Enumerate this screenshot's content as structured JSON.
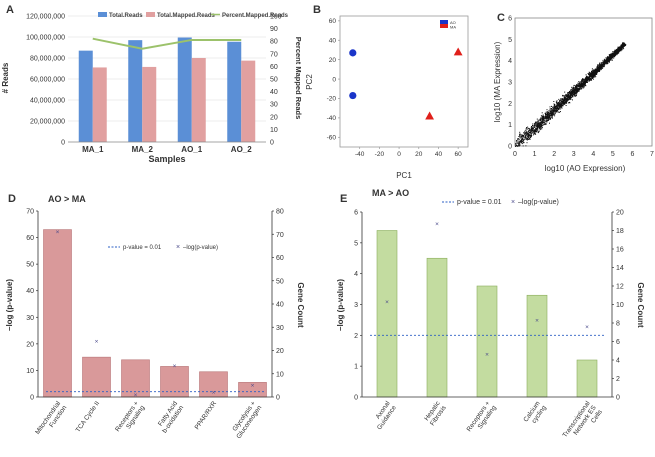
{
  "panel_labels": {
    "a": "A",
    "b": "B",
    "c": "C",
    "d": "D",
    "e": "E"
  },
  "colors": {
    "blue": "#5b8fd6",
    "pink": "#e1a0a0",
    "green_line": "#9cc26b",
    "bar_green": "#c3dca0",
    "bar_green_stroke": "#8aae5c",
    "bar_red": "#d9999a",
    "bar_red_stroke": "#b77476",
    "dot_blue": "#1a35c9",
    "tri_red": "#e0201b",
    "threshold": "#2b5fc4"
  },
  "chart_data": [
    {
      "id": "A",
      "type": "bar",
      "categories": [
        "MA_1",
        "MA_2",
        "AO_1",
        "AO_2"
      ],
      "series": [
        {
          "name": "Total.Reads",
          "values": [
            87000000,
            97000000,
            99500000,
            95500000
          ]
        },
        {
          "name": "Total.Mapped.Reads",
          "values": [
            71000000,
            71500000,
            80000000,
            77500000
          ]
        }
      ],
      "line_series": {
        "name": "Percent.Mapped.Reads",
        "values": [
          82,
          74,
          81,
          81
        ]
      },
      "xlabel": "Samples",
      "ylabel": "# Reads",
      "ylabel2": "Percent Mapped Reads",
      "ylim": [
        0,
        120000000
      ],
      "ylim2": [
        0,
        100
      ],
      "yticks": [
        "0",
        "20,000,000",
        "40,000,000",
        "60,000,000",
        "80,000,000",
        "100,000,000",
        "120,000,000"
      ],
      "yticks2": [
        "0",
        "10",
        "20",
        "30",
        "40",
        "50",
        "60",
        "70",
        "80",
        "90",
        "100"
      ]
    },
    {
      "id": "B",
      "type": "scatter",
      "series": [
        {
          "name": "AO",
          "x": [
            -47,
            -47
          ],
          "y": [
            27,
            -17
          ]
        },
        {
          "name": "MA",
          "x": [
            31,
            60
          ],
          "y": [
            -38,
            28
          ]
        }
      ],
      "xlabel": "PC1",
      "ylabel": "PC2",
      "xlim": [
        -60,
        70
      ],
      "ylim": [
        -70,
        65
      ],
      "xticks": [
        "-40",
        "-20",
        "0",
        "20",
        "40",
        "60"
      ],
      "yticks": [
        "-60",
        "-40",
        "-20",
        "0",
        "20",
        "40",
        "60"
      ],
      "legend": [
        "AO",
        "MA"
      ]
    },
    {
      "id": "C",
      "type": "scatter",
      "xlabel": "log10 (AO Expression)",
      "ylabel": "log10 (MA Expression)",
      "xlim": [
        0,
        7
      ],
      "ylim": [
        0,
        6
      ],
      "xticks": [
        "0",
        "1",
        "2",
        "3",
        "4",
        "5",
        "6",
        "7"
      ],
      "yticks": [
        "0",
        "1",
        "2",
        "3",
        "4",
        "5",
        "6"
      ]
    },
    {
      "id": "D",
      "type": "bar",
      "title": "AO > MA",
      "categories": [
        "Mitochondrial Function",
        "TCA Cycle II",
        "Receptors + Signaling",
        "Fatty Acid b-oxidation",
        "PPAR/RXR",
        "Glycolysis + Gluconeogen"
      ],
      "values": [
        63,
        15,
        14,
        11.5,
        9.5,
        5.5
      ],
      "scatter_values": [
        71,
        24,
        1,
        13.5,
        2,
        5
      ],
      "threshold": 2,
      "legend": [
        "p-value = 0.01",
        "–log(p-value)"
      ],
      "ylabel": "–log (p-value)",
      "ylabel2": "Gene Count",
      "ylim": [
        0,
        70
      ],
      "ylim2": [
        0,
        80
      ],
      "yticks": [
        "0",
        "10",
        "20",
        "30",
        "40",
        "50",
        "60",
        "70"
      ],
      "yticks2": [
        "0",
        "10",
        "20",
        "30",
        "40",
        "50",
        "60",
        "70",
        "80"
      ]
    },
    {
      "id": "E",
      "type": "bar",
      "title": "MA > AO",
      "categories": [
        "Axonal Guidance",
        "Hepatic Fibrosis",
        "Receptors + Signaling",
        "Calcium cycling",
        "Transcriptional Network ES Cells"
      ],
      "values": [
        5.4,
        4.5,
        3.6,
        3.3,
        1.2
      ],
      "scatter_values": [
        10.3,
        18.7,
        4.6,
        8.3,
        7.6
      ],
      "threshold": 2,
      "legend": [
        "p-value = 0.01",
        "–log(p-value)"
      ],
      "ylabel": "–log (p-value)",
      "ylabel2": "Gene Count",
      "ylim": [
        0,
        6
      ],
      "ylim2": [
        0,
        20
      ],
      "yticks": [
        "0",
        "1",
        "2",
        "3",
        "4",
        "5",
        "6"
      ],
      "yticks2": [
        "0",
        "2",
        "4",
        "6",
        "8",
        "10",
        "12",
        "14",
        "16",
        "18",
        "20"
      ]
    }
  ]
}
